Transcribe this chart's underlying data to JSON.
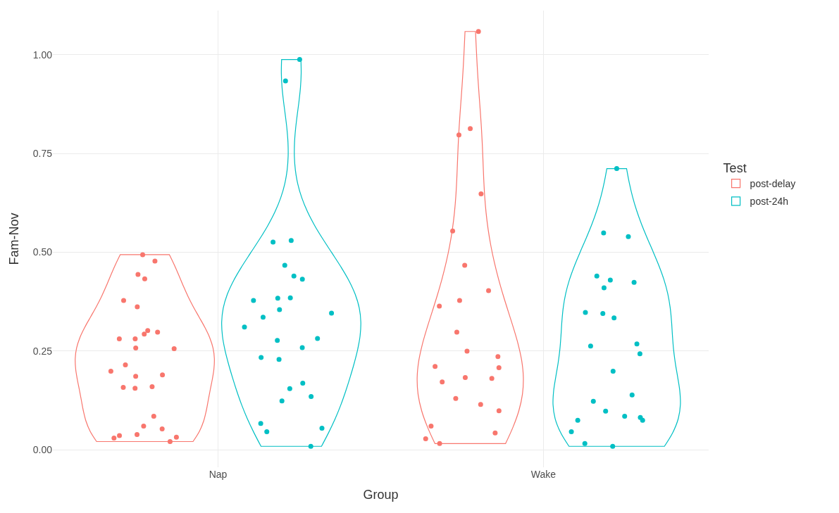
{
  "chart_data": {
    "type": "scatter",
    "xlabel": "Group",
    "ylabel": "Fam-Nov",
    "legend_title": "Test",
    "legend": "right",
    "grid": true,
    "marker": "circle",
    "categories": [
      "Nap",
      "Wake"
    ],
    "ylim": [
      -0.044,
      1.112
    ],
    "yticks": [
      {
        "value": 0,
        "label": "0.00"
      },
      {
        "value": 0.25,
        "label": "0.25"
      },
      {
        "value": 0.5,
        "label": "0.50"
      },
      {
        "value": 0.75,
        "label": "0.75"
      },
      {
        "value": 1,
        "label": "1.00"
      }
    ],
    "series": [
      {
        "name": "post-delay",
        "color": "#f8766d",
        "x": [
          "Nap",
          "Nap",
          "Nap",
          "Nap",
          "Nap",
          "Nap",
          "Nap",
          "Nap",
          "Nap",
          "Nap",
          "Nap",
          "Nap",
          "Nap",
          "Nap",
          "Nap",
          "Nap",
          "Nap",
          "Nap",
          "Nap",
          "Nap",
          "Nap",
          "Nap",
          "Nap",
          "Nap",
          "Nap",
          "Nap",
          "Nap",
          "Nap",
          "Wake",
          "Wake",
          "Wake",
          "Wake",
          "Wake",
          "Wake",
          "Wake",
          "Wake",
          "Wake",
          "Wake",
          "Wake",
          "Wake",
          "Wake",
          "Wake",
          "Wake",
          "Wake",
          "Wake",
          "Wake",
          "Wake",
          "Wake",
          "Wake",
          "Wake",
          "Wake",
          "Wake"
        ],
        "values": [
          0.494,
          0.478,
          0.444,
          0.433,
          0.378,
          0.362,
          0.302,
          0.298,
          0.293,
          0.281,
          0.281,
          0.258,
          0.256,
          0.215,
          0.199,
          0.19,
          0.186,
          0.158,
          0.16,
          0.156,
          0.085,
          0.06,
          0.053,
          0.039,
          0.03,
          0.032,
          0.036,
          0.021,
          1.059,
          0.813,
          0.797,
          0.648,
          0.554,
          0.467,
          0.403,
          0.378,
          0.364,
          0.298,
          0.25,
          0.236,
          0.211,
          0.208,
          0.181,
          0.172,
          0.183,
          0.13,
          0.115,
          0.099,
          0.06,
          0.043,
          0.028,
          0.016
        ]
      },
      {
        "name": "post-24h",
        "color": "#00bfc4",
        "x": [
          "Nap",
          "Nap",
          "Nap",
          "Nap",
          "Nap",
          "Nap",
          "Nap",
          "Nap",
          "Nap",
          "Nap",
          "Nap",
          "Nap",
          "Nap",
          "Nap",
          "Nap",
          "Nap",
          "Nap",
          "Nap",
          "Nap",
          "Nap",
          "Nap",
          "Nap",
          "Nap",
          "Nap",
          "Nap",
          "Nap",
          "Nap",
          "Wake",
          "Wake",
          "Wake",
          "Wake",
          "Wake",
          "Wake",
          "Wake",
          "Wake",
          "Wake",
          "Wake",
          "Wake",
          "Wake",
          "Wake",
          "Wake",
          "Wake",
          "Wake",
          "Wake",
          "Wake",
          "Wake",
          "Wake",
          "Wake",
          "Wake",
          "Wake",
          "Wake"
        ],
        "values": [
          0.988,
          0.934,
          0.53,
          0.526,
          0.467,
          0.44,
          0.432,
          0.385,
          0.384,
          0.378,
          0.355,
          0.346,
          0.336,
          0.311,
          0.277,
          0.282,
          0.259,
          0.234,
          0.229,
          0.169,
          0.155,
          0.135,
          0.124,
          0.067,
          0.055,
          0.046,
          0.009,
          0.712,
          0.549,
          0.54,
          0.44,
          0.43,
          0.424,
          0.41,
          0.348,
          0.345,
          0.334,
          0.268,
          0.263,
          0.243,
          0.199,
          0.139,
          0.123,
          0.098,
          0.085,
          0.082,
          0.075,
          0.075,
          0.046,
          0.016,
          0.009
        ]
      }
    ]
  }
}
